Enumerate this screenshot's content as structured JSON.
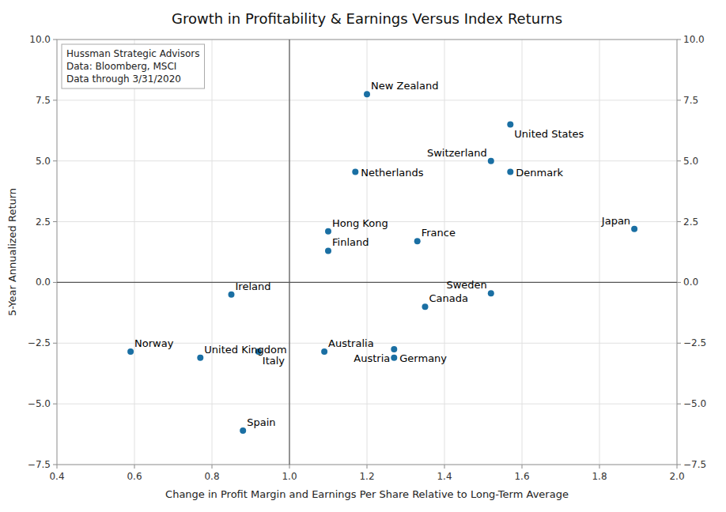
{
  "chart_data": {
    "type": "scatter",
    "title": "Growth in Profitability & Earnings Versus Index Returns",
    "xlabel": "Change in Profit Margin and Earnings Per Share Relative to Long-Term Average",
    "ylabel": "5-Year Annualized Return",
    "xlim": [
      0.4,
      2.0
    ],
    "ylim": [
      -7.5,
      10.0
    ],
    "xticks": [
      0.4,
      0.6,
      0.8,
      {
        "value": 1.0,
        "label": "1.0"
      },
      1.2,
      1.4,
      1.6,
      1.8,
      {
        "value": 2.0,
        "label": "2.0"
      }
    ],
    "yticks": [
      {
        "value": -7.5,
        "label": "−7.5"
      },
      {
        "value": -5.0,
        "label": "−5.0"
      },
      {
        "value": -2.5,
        "label": "−2.5"
      },
      {
        "value": 0.0,
        "label": "0.0"
      },
      2.5,
      {
        "value": 5.0,
        "label": "5.0"
      },
      7.5,
      {
        "value": 10.0,
        "label": "10.0"
      }
    ],
    "grid": true,
    "reference_lines": {
      "x": [
        1.0
      ],
      "y": [
        0.0
      ]
    },
    "annotation": "Hussman Strategic Advisors\nData: Bloomberg, MSCI\nData through 3/31/2020",
    "color": "#1a6fa3",
    "point_labels": [
      "New Zealand",
      "United States",
      "Netherlands",
      "Switzerland",
      "Denmark",
      "Hong Kong",
      "Finland",
      "France",
      "Japan",
      "Ireland",
      "Sweden",
      "Canada",
      "Norway",
      "Italy",
      "United Kingdom",
      "Australia",
      "Austria",
      "Germany",
      "Spain"
    ],
    "x": [
      1.2,
      1.57,
      1.17,
      1.52,
      1.57,
      1.1,
      1.1,
      1.33,
      1.89,
      0.85,
      1.52,
      1.35,
      0.59,
      0.92,
      0.77,
      1.09,
      1.27,
      1.27,
      0.88
    ],
    "values": [
      7.75,
      6.5,
      4.55,
      5.0,
      4.55,
      2.1,
      1.3,
      1.7,
      2.2,
      -0.5,
      -0.45,
      -1.0,
      -2.85,
      -2.85,
      -3.1,
      -2.85,
      -2.75,
      -3.1,
      -6.1
    ]
  }
}
